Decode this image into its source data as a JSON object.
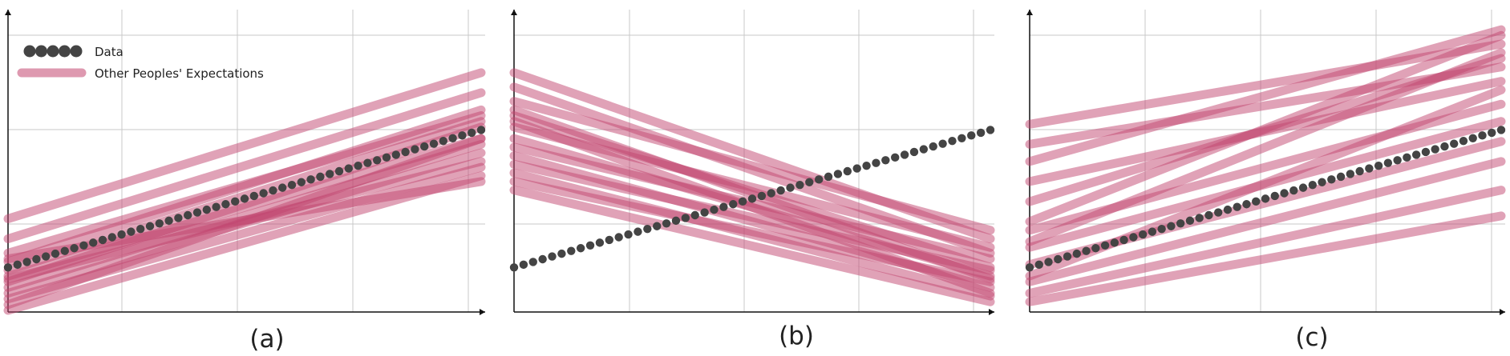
{
  "figure": {
    "legend": {
      "data_label": "Data",
      "expectations_label": "Other Peoples' Expectations"
    },
    "colors": {
      "data": "#444444",
      "expectation": "#c2456f",
      "grid": "#c8c8c8",
      "axis": "#111111"
    }
  },
  "chart_data": [
    {
      "type": "line",
      "panel_label": "(a)",
      "xlim": [
        0,
        1
      ],
      "ylim": [
        0,
        1
      ],
      "grid": true,
      "legend_position": "top-left",
      "data_series": {
        "name": "Data",
        "x": [
          0,
          1
        ],
        "y": [
          0.15,
          0.63
        ]
      },
      "expectations": [
        {
          "name": "exp-1",
          "y0": 0.32,
          "y1": 0.83
        },
        {
          "name": "exp-2",
          "y0": 0.25,
          "y1": 0.76
        },
        {
          "name": "exp-3",
          "y0": 0.2,
          "y1": 0.68
        },
        {
          "name": "exp-4",
          "y0": 0.17,
          "y1": 0.7
        },
        {
          "name": "exp-5",
          "y0": 0.14,
          "y1": 0.66
        },
        {
          "name": "exp-6",
          "y0": 0.12,
          "y1": 0.6
        },
        {
          "name": "exp-7",
          "y0": 0.1,
          "y1": 0.64
        },
        {
          "name": "exp-8",
          "y0": 0.08,
          "y1": 0.58
        },
        {
          "name": "exp-9",
          "y0": 0.06,
          "y1": 0.55
        },
        {
          "name": "exp-10",
          "y0": 0.04,
          "y1": 0.5
        },
        {
          "name": "exp-11",
          "y0": 0.02,
          "y1": 0.6
        },
        {
          "name": "exp-12",
          "y0": 0.0,
          "y1": 0.47
        },
        {
          "name": "exp-13",
          "y0": 0.18,
          "y1": 0.45
        },
        {
          "name": "exp-14",
          "y0": 0.11,
          "y1": 0.52
        }
      ]
    },
    {
      "type": "line",
      "panel_label": "(b)",
      "xlim": [
        0,
        1
      ],
      "ylim": [
        0,
        1
      ],
      "grid": true,
      "data_series": {
        "name": "Data",
        "x": [
          0,
          1
        ],
        "y": [
          0.15,
          0.63
        ]
      },
      "expectations": [
        {
          "name": "exp-1",
          "y0": 0.83,
          "y1": 0.25
        },
        {
          "name": "exp-2",
          "y0": 0.78,
          "y1": 0.2
        },
        {
          "name": "exp-3",
          "y0": 0.73,
          "y1": 0.28
        },
        {
          "name": "exp-4",
          "y0": 0.68,
          "y1": 0.15
        },
        {
          "name": "exp-5",
          "y0": 0.64,
          "y1": 0.22
        },
        {
          "name": "exp-6",
          "y0": 0.6,
          "y1": 0.12
        },
        {
          "name": "exp-7",
          "y0": 0.57,
          "y1": 0.18
        },
        {
          "name": "exp-8",
          "y0": 0.54,
          "y1": 0.08
        },
        {
          "name": "exp-9",
          "y0": 0.51,
          "y1": 0.14
        },
        {
          "name": "exp-10",
          "y0": 0.48,
          "y1": 0.05
        },
        {
          "name": "exp-11",
          "y0": 0.45,
          "y1": 0.1
        },
        {
          "name": "exp-12",
          "y0": 0.42,
          "y1": 0.03
        },
        {
          "name": "exp-13",
          "y0": 0.66,
          "y1": 0.06
        },
        {
          "name": "exp-14",
          "y0": 0.7,
          "y1": 0.11
        }
      ]
    },
    {
      "type": "line",
      "panel_label": "(c)",
      "xlim": [
        0,
        1
      ],
      "ylim": [
        0,
        1
      ],
      "grid": true,
      "data_series": {
        "name": "Data",
        "x": [
          0,
          1
        ],
        "y": [
          0.15,
          0.63
        ]
      },
      "expectations": [
        {
          "name": "exp-1",
          "y0": 0.65,
          "y1": 0.93
        },
        {
          "name": "exp-2",
          "y0": 0.58,
          "y1": 0.85
        },
        {
          "name": "exp-3",
          "y0": 0.52,
          "y1": 0.98
        },
        {
          "name": "exp-4",
          "y0": 0.45,
          "y1": 0.8
        },
        {
          "name": "exp-5",
          "y0": 0.38,
          "y1": 0.88
        },
        {
          "name": "exp-6",
          "y0": 0.31,
          "y1": 0.96
        },
        {
          "name": "exp-7",
          "y0": 0.28,
          "y1": 0.72
        },
        {
          "name": "exp-8",
          "y0": 0.22,
          "y1": 0.66
        },
        {
          "name": "exp-9",
          "y0": 0.16,
          "y1": 0.59
        },
        {
          "name": "exp-10",
          "y0": 0.1,
          "y1": 0.52
        },
        {
          "name": "exp-11",
          "y0": 0.06,
          "y1": 0.42
        },
        {
          "name": "exp-12",
          "y0": 0.03,
          "y1": 0.33
        },
        {
          "name": "exp-13",
          "y0": 0.24,
          "y1": 0.9
        },
        {
          "name": "exp-14",
          "y0": 0.12,
          "y1": 0.77
        }
      ]
    }
  ]
}
